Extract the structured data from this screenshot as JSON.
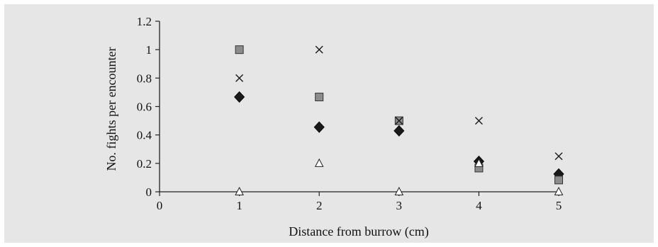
{
  "chart_data": {
    "type": "scatter",
    "title": "",
    "xlabel": "Distance from burrow (cm)",
    "ylabel": "No. fights per encounter",
    "xlim": [
      0,
      5
    ],
    "ylim": [
      0,
      1.2
    ],
    "x_ticks": [
      "0",
      "1",
      "2",
      "3",
      "4",
      "5"
    ],
    "y_ticks": [
      "0",
      "0.2",
      "0.4",
      "0.6",
      "0.8",
      "1",
      "1.2"
    ],
    "grid": false,
    "legend": "none",
    "series": [
      {
        "marker": "diamond",
        "color": "#1a1a1a",
        "points": [
          [
            1,
            0.667
          ],
          [
            2,
            0.455
          ],
          [
            3,
            0.429
          ],
          [
            4,
            0.214
          ],
          [
            5,
            0.125
          ]
        ]
      },
      {
        "marker": "square",
        "color": "#8c8c8c",
        "points": [
          [
            1,
            1.0
          ],
          [
            2,
            0.667
          ],
          [
            3,
            0.5
          ],
          [
            4,
            0.167
          ],
          [
            5,
            0.083
          ]
        ]
      },
      {
        "marker": "triangle",
        "color": "#ffffff",
        "points": [
          [
            1,
            0.0
          ],
          [
            2,
            0.2
          ],
          [
            3,
            0.0
          ],
          [
            4,
            0.2
          ],
          [
            5,
            0.0
          ]
        ]
      },
      {
        "marker": "cross",
        "color": "#1a1a1a",
        "points": [
          [
            1,
            0.8
          ],
          [
            2,
            1.0
          ],
          [
            3,
            0.5
          ],
          [
            4,
            0.5
          ],
          [
            5,
            0.25
          ]
        ]
      }
    ]
  }
}
